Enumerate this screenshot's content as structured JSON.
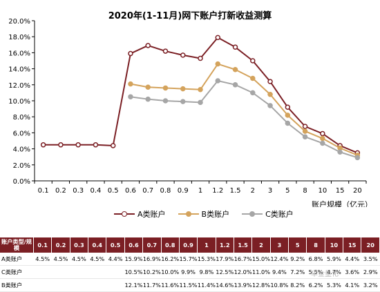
{
  "chart_data": {
    "type": "line",
    "title": "2020年(1-11月)网下账户打新收益测算",
    "xlabel": "账户规模（亿元）",
    "ylabel": "",
    "categories": [
      "0.1",
      "0.2",
      "0.3",
      "0.4",
      "0.5",
      "0.6",
      "0.7",
      "0.8",
      "0.9",
      "1",
      "1.2",
      "1.5",
      "2",
      "3",
      "5",
      "8",
      "10",
      "15",
      "20"
    ],
    "y_ticks": [
      "0.0%",
      "2.0%",
      "4.0%",
      "6.0%",
      "8.0%",
      "10.0%",
      "12.0%",
      "14.0%",
      "16.0%",
      "18.0%",
      "20.0%"
    ],
    "ylim": [
      0,
      20
    ],
    "grid": false,
    "legend_position": "bottom",
    "series": [
      {
        "name": "A类账户",
        "color": "#7b1f24",
        "marker_fill": "#ffffff",
        "values": [
          4.5,
          4.5,
          4.5,
          4.5,
          4.4,
          15.9,
          16.9,
          16.2,
          15.7,
          15.3,
          17.9,
          16.7,
          15.0,
          12.4,
          9.2,
          6.8,
          5.9,
          4.4,
          3.5
        ]
      },
      {
        "name": "B类账户",
        "color": "#d4a35c",
        "marker_fill": "#d4a35c",
        "values": [
          null,
          null,
          null,
          null,
          null,
          12.1,
          11.7,
          11.6,
          11.5,
          11.4,
          14.6,
          13.9,
          12.8,
          10.8,
          8.2,
          6.2,
          5.3,
          4.1,
          3.2
        ]
      },
      {
        "name": "C类账户",
        "color": "#a6a6a6",
        "marker_fill": "#a6a6a6",
        "values": [
          null,
          null,
          null,
          null,
          null,
          10.5,
          10.2,
          10.0,
          9.9,
          9.8,
          12.5,
          12.0,
          11.0,
          9.4,
          7.2,
          5.5,
          4.7,
          3.6,
          2.9
        ]
      }
    ]
  },
  "table": {
    "header_label": "账户类型/规模",
    "rows": [
      {
        "label": "A类账户",
        "cells": [
          "4.5%",
          "4.5%",
          "4.5%",
          "4.5%",
          "4.4%",
          "15.9%",
          "16.9%",
          "16.2%",
          "15.7%",
          "15.3%",
          "17.9%",
          "16.7%",
          "15.0%",
          "12.4%",
          "9.2%",
          "6.8%",
          "5.9%",
          "4.4%",
          "3.5%"
        ]
      },
      {
        "label": "C类账户",
        "cells": [
          "",
          "",
          "",
          "",
          "",
          "10.5%",
          "10.2%",
          "10.0%",
          "9.9%",
          "9.8%",
          "12.5%",
          "12.0%",
          "11.0%",
          "9.4%",
          "7.2%",
          "5.5%",
          "4.7%",
          "3.6%",
          "2.9%"
        ]
      },
      {
        "label": "B类账户",
        "cells": [
          "",
          "",
          "",
          "",
          "",
          "12.1%",
          "11.7%",
          "11.6%",
          "11.5%",
          "11.4%",
          "14.6%",
          "13.9%",
          "12.8%",
          "10.8%",
          "8.2%",
          "6.2%",
          "5.3%",
          "4.1%",
          "3.2%"
        ]
      }
    ]
  },
  "watermark": "华金量化"
}
